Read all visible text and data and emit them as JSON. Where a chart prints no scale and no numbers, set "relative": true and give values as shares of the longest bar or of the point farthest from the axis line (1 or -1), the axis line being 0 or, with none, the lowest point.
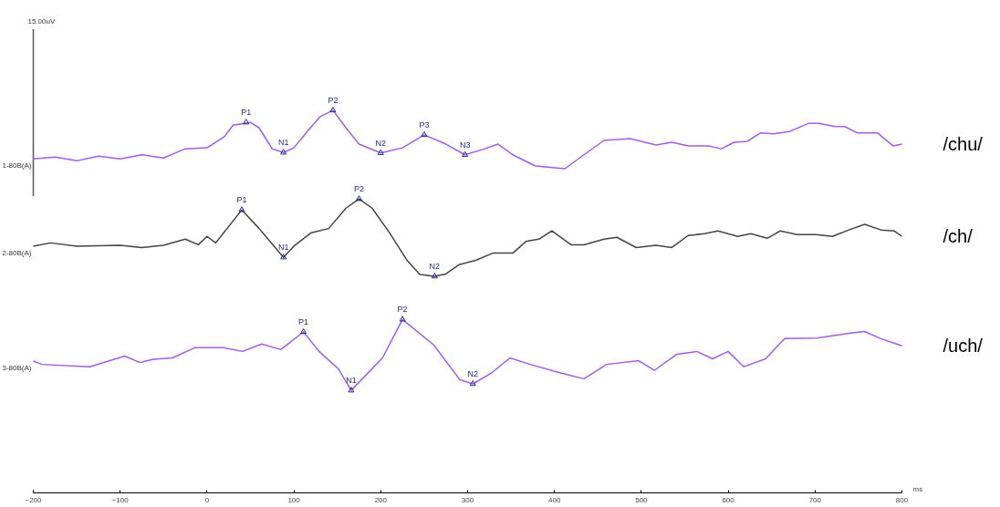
{
  "chart_data": {
    "type": "line",
    "relative": true,
    "xlabel": "ms",
    "xlim": [
      -200,
      800
    ],
    "xticks": [
      -200,
      -100,
      0,
      100,
      200,
      300,
      400,
      500,
      600,
      700,
      800
    ],
    "grid": false,
    "legend": false,
    "series": [
      {
        "type": "line",
        "color": "#555555",
        "x": [
          -200,
          -200
        ],
        "values": [
          1,
          0.64
        ]
      },
      {
        "name": "/chu/",
        "color": "#a05af5",
        "x": [
          -200,
          -175,
          -150,
          -125,
          -100,
          -75,
          -50,
          -25,
          0,
          20,
          30,
          50,
          60,
          75,
          88,
          100,
          115,
          130,
          145,
          160,
          175,
          200,
          225,
          250,
          275,
          297,
          320,
          335,
          352,
          378,
          412,
          434,
          457,
          487,
          517,
          535,
          554,
          577,
          592,
          607,
          622,
          637,
          652,
          670,
          693,
          704,
          723,
          734,
          749,
          772,
          790,
          800
        ],
        "values": [
          0.72,
          0.724,
          0.716,
          0.726,
          0.72,
          0.729,
          0.722,
          0.742,
          0.744,
          0.768,
          0.793,
          0.799,
          0.787,
          0.742,
          0.734,
          0.744,
          0.778,
          0.811,
          0.825,
          0.787,
          0.752,
          0.733,
          0.744,
          0.772,
          0.752,
          0.729,
          0.742,
          0.752,
          0.729,
          0.705,
          0.699,
          0.729,
          0.76,
          0.764,
          0.75,
          0.756,
          0.748,
          0.748,
          0.742,
          0.756,
          0.758,
          0.776,
          0.774,
          0.779,
          0.797,
          0.797,
          0.79,
          0.79,
          0.776,
          0.776,
          0.748,
          0.752
        ]
      },
      {
        "name": "/ch/",
        "color": "#444444",
        "x": [
          -200,
          -180,
          -150,
          -100,
          -75,
          -50,
          -25,
          -10,
          0,
          10,
          40,
          60,
          88,
          100,
          120,
          140,
          160,
          175,
          190,
          210,
          230,
          245,
          262,
          275,
          290,
          310,
          329,
          352,
          367,
          382,
          397,
          419,
          434,
          457,
          472,
          494,
          517,
          535,
          554,
          573,
          588,
          611,
          626,
          645,
          660,
          679,
          701,
          720,
          739,
          757,
          776,
          791,
          800
        ],
        "values": [
          0.532,
          0.539,
          0.532,
          0.534,
          0.529,
          0.534,
          0.547,
          0.535,
          0.553,
          0.539,
          0.61,
          0.57,
          0.508,
          0.532,
          0.561,
          0.57,
          0.614,
          0.634,
          0.614,
          0.561,
          0.502,
          0.471,
          0.467,
          0.472,
          0.492,
          0.502,
          0.517,
          0.517,
          0.542,
          0.547,
          0.565,
          0.535,
          0.535,
          0.547,
          0.551,
          0.529,
          0.534,
          0.529,
          0.555,
          0.559,
          0.565,
          0.553,
          0.559,
          0.549,
          0.565,
          0.557,
          0.557,
          0.553,
          0.567,
          0.579,
          0.567,
          0.565,
          0.553
        ]
      },
      {
        "name": "/uch/",
        "color": "#a05af5",
        "x": [
          -200,
          -190,
          -135,
          -95,
          -77,
          -62,
          -40,
          -14,
          19,
          41,
          63,
          85,
          111,
          129,
          151,
          166,
          202,
          225,
          261,
          291,
          306,
          327,
          349,
          372,
          408,
          434,
          460,
          497,
          515,
          541,
          564,
          582,
          600,
          618,
          643,
          665,
          702,
          739,
          757,
          775,
          800
        ],
        "values": [
          0.284,
          0.277,
          0.272,
          0.295,
          0.281,
          0.288,
          0.291,
          0.313,
          0.313,
          0.305,
          0.321,
          0.309,
          0.347,
          0.305,
          0.268,
          0.221,
          0.291,
          0.374,
          0.319,
          0.244,
          0.235,
          0.258,
          0.291,
          0.277,
          0.258,
          0.246,
          0.277,
          0.285,
          0.264,
          0.299,
          0.305,
          0.289,
          0.305,
          0.272,
          0.289,
          0.333,
          0.334,
          0.344,
          0.348,
          0.333,
          0.317
        ]
      }
    ],
    "annotations": [
      {
        "text": "15.00uV",
        "x": -200,
        "y": 1
      },
      {
        "text": "1-80B(A)",
        "x": -200,
        "y": 0.72
      },
      {
        "text": "2-80B(A)",
        "x": -200,
        "y": 0.532
      },
      {
        "text": "3-80B(A)",
        "x": -200,
        "y": 0.284
      },
      {
        "text": "P1",
        "x": 45,
        "y": 0.799
      },
      {
        "text": "N1",
        "x": 88,
        "y": 0.734
      },
      {
        "text": "P2",
        "x": 145,
        "y": 0.825
      },
      {
        "text": "N2",
        "x": 200,
        "y": 0.733
      },
      {
        "text": "P3",
        "x": 250,
        "y": 0.772
      },
      {
        "text": "N3",
        "x": 297,
        "y": 0.729
      },
      {
        "text": "P1",
        "x": 40,
        "y": 0.61
      },
      {
        "text": "N1",
        "x": 88,
        "y": 0.508
      },
      {
        "text": "P2",
        "x": 175,
        "y": 0.634
      },
      {
        "text": "N2",
        "x": 262,
        "y": 0.467
      },
      {
        "text": "P1",
        "x": 111,
        "y": 0.347
      },
      {
        "text": "N1",
        "x": 166,
        "y": 0.221
      },
      {
        "text": "P2",
        "x": 225,
        "y": 0.374
      },
      {
        "text": "N2",
        "x": 306,
        "y": 0.235
      }
    ]
  }
}
